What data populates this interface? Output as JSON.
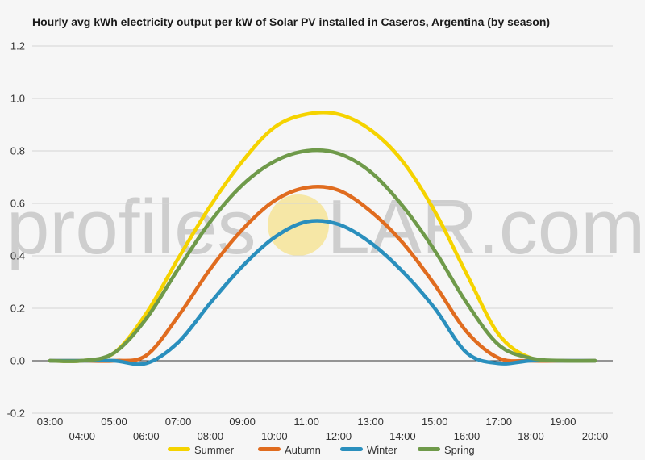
{
  "chart_data": {
    "type": "line",
    "title": "Hourly avg kWh electricity output per kW of Solar PV installed in Caseros, Argentina (by season)",
    "xlabel": "",
    "ylabel": "",
    "ylim": [
      -0.2,
      1.2
    ],
    "yticks": [
      "-0.2",
      "0.0",
      "0.2",
      "0.4",
      "0.6",
      "0.8",
      "1.0",
      "1.2"
    ],
    "grid": true,
    "legend_position": "bottom",
    "x": [
      "03:00",
      "04:00",
      "05:00",
      "06:00",
      "07:00",
      "08:00",
      "09:00",
      "10:00",
      "11:00",
      "12:00",
      "13:00",
      "14:00",
      "15:00",
      "16:00",
      "17:00",
      "18:00",
      "19:00",
      "20:00"
    ],
    "series": [
      {
        "name": "Summer",
        "color": "#f5d300",
        "values": [
          0.0,
          0.0,
          0.03,
          0.18,
          0.39,
          0.59,
          0.76,
          0.89,
          0.94,
          0.94,
          0.88,
          0.76,
          0.57,
          0.33,
          0.1,
          0.01,
          0.0,
          0.0
        ]
      },
      {
        "name": "Autumn",
        "color": "#e06c1f",
        "values": [
          0.0,
          0.0,
          0.0,
          0.02,
          0.17,
          0.35,
          0.5,
          0.61,
          0.66,
          0.65,
          0.57,
          0.45,
          0.29,
          0.11,
          0.01,
          0.0,
          0.0,
          0.0
        ]
      },
      {
        "name": "Winter",
        "color": "#2a8fbd",
        "values": [
          0.0,
          0.0,
          0.0,
          -0.01,
          0.07,
          0.22,
          0.36,
          0.47,
          0.53,
          0.52,
          0.45,
          0.34,
          0.2,
          0.03,
          -0.01,
          0.0,
          0.0,
          0.0
        ]
      },
      {
        "name": "Spring",
        "color": "#6f9a4a",
        "values": [
          0.0,
          0.0,
          0.03,
          0.16,
          0.35,
          0.53,
          0.67,
          0.76,
          0.8,
          0.79,
          0.72,
          0.59,
          0.42,
          0.22,
          0.06,
          0.01,
          0.0,
          0.0
        ]
      }
    ]
  },
  "watermark": {
    "before": "profile",
    "s": "s",
    "after": "LAR.com",
    "sun_color": "#f6e7a6"
  }
}
